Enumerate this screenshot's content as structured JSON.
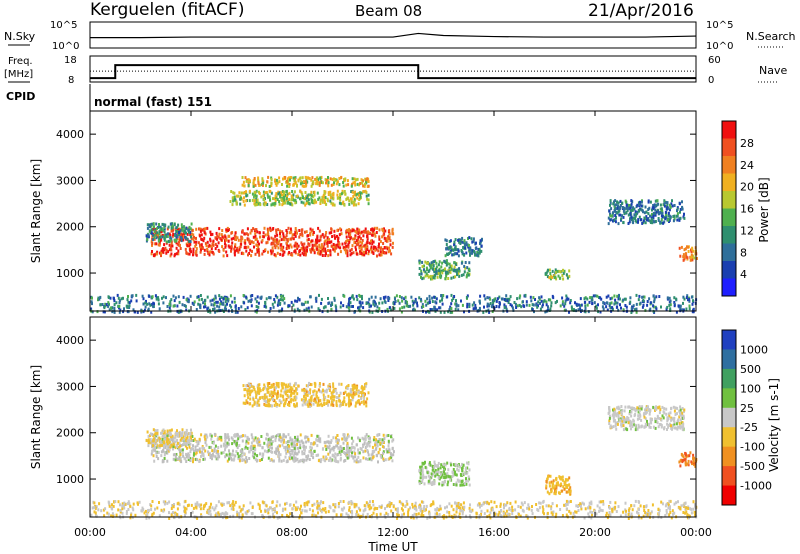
{
  "header": {
    "site": "Kerguelen (fitACF)",
    "beam": "Beam 08",
    "date": "21/Apr/2016"
  },
  "top_panels": {
    "nsky_label": "N.Sky",
    "nsearch_label": "N.Search",
    "nsky_ticks": [
      "10^5",
      "10^0"
    ],
    "nsearch_ticks": [
      "10^5",
      "10^0"
    ],
    "freq_label_1": "Freq.",
    "freq_label_2": "[MHz]",
    "freq_ticks": [
      "18",
      "8"
    ],
    "nave_label": "Nave",
    "nave_ticks": [
      "60",
      "0"
    ],
    "cpid_label": "CPID",
    "cpid_text": "normal (fast) 151"
  },
  "xaxis": {
    "label": "Time UT",
    "ticks": [
      "00:00",
      "04:00",
      "08:00",
      "12:00",
      "16:00",
      "20:00",
      "00:00"
    ]
  },
  "colors": {
    "power": [
      "#1f1fff",
      "#1a3fb0",
      "#2f6f9a",
      "#2f8f6f",
      "#4fb04f",
      "#b8c830",
      "#f0b020",
      "#f08020",
      "#f05020",
      "#f01010"
    ],
    "velocity": [
      "#2040c0",
      "#2f6fa0",
      "#40a060",
      "#70c040",
      "#c8c8c8",
      "#f0c030",
      "#f09020",
      "#f05020",
      "#f00000"
    ],
    "ground": "#bebebe"
  },
  "chart_data": [
    {
      "type": "line",
      "title": "N.Sky / N.Search",
      "x_hours": [
        0,
        2,
        4,
        6,
        8,
        10,
        12,
        13,
        14,
        16,
        18,
        20,
        22,
        24
      ],
      "series": [
        {
          "name": "N.Sky",
          "values_log10": [
            2.0,
            2.0,
            2.1,
            2.1,
            2.1,
            2.1,
            2.1,
            2.8,
            2.4,
            2.2,
            2.1,
            2.1,
            2.1,
            2.3
          ]
        }
      ],
      "ylim_log10": [
        0,
        5
      ]
    },
    {
      "type": "line",
      "title": "Freq. [MHz] / Nave",
      "x_hours": [
        0,
        1.0,
        1.0,
        13.0,
        13.0,
        24
      ],
      "series": [
        {
          "name": "Freq.",
          "values": [
            9.5,
            9.5,
            14.5,
            14.5,
            9.5,
            9.5
          ]
        },
        {
          "name": "Nave",
          "values": [
            25,
            25,
            25,
            25,
            25,
            25
          ]
        }
      ],
      "freq_ylim": [
        8,
        18
      ],
      "nave_ylim": [
        0,
        60
      ]
    },
    {
      "type": "heatmap",
      "ylabel": "Slant Range [km]",
      "xlabel": "Time UT",
      "xlim_hours": [
        0,
        24
      ],
      "ylim_km": [
        180,
        4500
      ],
      "yticks": [
        1000,
        2000,
        3000,
        4000
      ],
      "colorbar": {
        "label": "Power [dB]",
        "ticks": [
          "28",
          "24",
          "20",
          "16",
          "12",
          "8",
          "4"
        ],
        "range": [
          0,
          30
        ]
      },
      "regions": [
        {
          "t0": 2.4,
          "t1": 12.0,
          "r0": 1400,
          "r1": 2000,
          "value": 26
        },
        {
          "t0": 2.2,
          "t1": 4.0,
          "r0": 1700,
          "r1": 2100,
          "value": 10
        },
        {
          "t0": 5.5,
          "t1": 11.0,
          "r0": 2500,
          "r1": 2800,
          "value": 16
        },
        {
          "t0": 6.0,
          "t1": 11.0,
          "r0": 2900,
          "r1": 3100,
          "value": 18
        },
        {
          "t0": 13.0,
          "t1": 15.0,
          "r0": 900,
          "r1": 1300,
          "value": 12
        },
        {
          "t0": 14.0,
          "t1": 15.5,
          "r0": 1400,
          "r1": 1800,
          "value": 8
        },
        {
          "t0": 18.0,
          "t1": 19.0,
          "r0": 900,
          "r1": 1100,
          "value": 14
        },
        {
          "t0": 20.5,
          "t1": 23.5,
          "r0": 2100,
          "r1": 2600,
          "value": 8
        },
        {
          "t0": 23.3,
          "t1": 24.0,
          "r0": 1300,
          "r1": 1600,
          "value": 22
        },
        {
          "t0": 0.0,
          "t1": 24.0,
          "r0": 180,
          "r1": 550,
          "value": 8
        }
      ]
    },
    {
      "type": "heatmap",
      "ylabel": "Slant Range [km]",
      "xlabel": "Time UT",
      "xlim_hours": [
        0,
        24
      ],
      "ylim_km": [
        180,
        4500
      ],
      "yticks": [
        1000,
        2000,
        3000,
        4000
      ],
      "colorbar": {
        "label": "Velocity [m s-1]",
        "ticks": [
          "1000",
          "500",
          "100",
          "25",
          "-25",
          "-100",
          "-500",
          "-1000"
        ],
        "range": [
          -1000,
          1000
        ]
      },
      "regions": [
        {
          "t0": 2.4,
          "t1": 12.0,
          "r0": 1400,
          "r1": 2000,
          "value": 0
        },
        {
          "t0": 2.2,
          "t1": 4.0,
          "r0": 1700,
          "r1": 2100,
          "value": -100
        },
        {
          "t0": 6.0,
          "t1": 11.0,
          "r0": 2600,
          "r1": 3100,
          "value": -200
        },
        {
          "t0": 13.0,
          "t1": 15.0,
          "r0": 900,
          "r1": 1400,
          "value": 100
        },
        {
          "t0": 18.0,
          "t1": 19.0,
          "r0": 700,
          "r1": 1100,
          "value": -300
        },
        {
          "t0": 20.5,
          "t1": 23.5,
          "r0": 2100,
          "r1": 2600,
          "value": 0
        },
        {
          "t0": 23.3,
          "t1": 24.0,
          "r0": 1300,
          "r1": 1600,
          "value": -500
        },
        {
          "t0": 0.0,
          "t1": 24.0,
          "r0": 180,
          "r1": 550,
          "value": -100
        }
      ]
    }
  ]
}
